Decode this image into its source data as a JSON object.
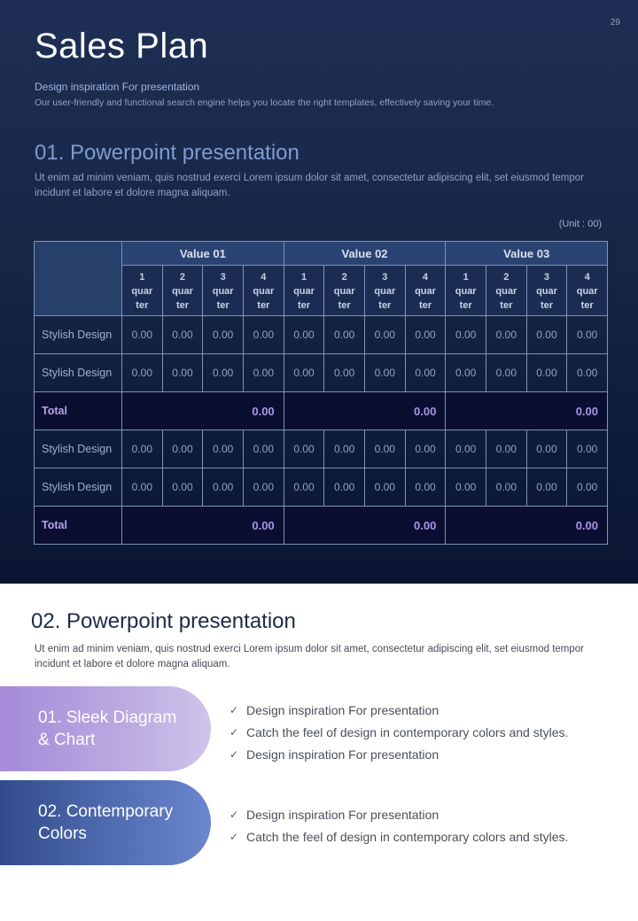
{
  "page_number": "29",
  "title": "Sales Plan",
  "subtitle": "Design inspiration For presentation",
  "subdescription": "Our user-friendly and functional search engine helps you locate the right templates, effectively saving your time.",
  "section1": {
    "title": "01. Powerpoint presentation",
    "description": "Ut enim ad minim veniam, quis nostrud exerci  Lorem ipsum dolor sit amet, consectetur  adipiscing elit, set eiusmod tempor incidunt et labore et dolore magna aliquam.",
    "unit": "(Unit : 00)"
  },
  "table": {
    "groups": [
      "Value 01",
      "Value 02",
      "Value 03"
    ],
    "quarters": [
      [
        "1",
        "quar",
        "ter"
      ],
      [
        "2",
        "quar",
        "ter"
      ],
      [
        "3",
        "quar",
        "ter"
      ],
      [
        "4",
        "quar",
        "ter"
      ]
    ],
    "rows": [
      {
        "label": "Stylish Design",
        "values": [
          "0.00",
          "0.00",
          "0.00",
          "0.00",
          "0.00",
          "0.00",
          "0.00",
          "0.00",
          "0.00",
          "0.00",
          "0.00",
          "0.00"
        ]
      },
      {
        "label": "Stylish Design",
        "values": [
          "0.00",
          "0.00",
          "0.00",
          "0.00",
          "0.00",
          "0.00",
          "0.00",
          "0.00",
          "0.00",
          "0.00",
          "0.00",
          "0.00"
        ]
      },
      {
        "label": "Total",
        "totals": [
          "0.00",
          "0.00",
          "0.00"
        ]
      },
      {
        "label": "Stylish Design",
        "values": [
          "0.00",
          "0.00",
          "0.00",
          "0.00",
          "0.00",
          "0.00",
          "0.00",
          "0.00",
          "0.00",
          "0.00",
          "0.00",
          "0.00"
        ]
      },
      {
        "label": "Stylish Design",
        "values": [
          "0.00",
          "0.00",
          "0.00",
          "0.00",
          "0.00",
          "0.00",
          "0.00",
          "0.00",
          "0.00",
          "0.00",
          "0.00",
          "0.00"
        ]
      },
      {
        "label": "Total",
        "totals": [
          "0.00",
          "0.00",
          "0.00"
        ]
      }
    ]
  },
  "section2": {
    "title": "02. Powerpoint presentation",
    "description": "Ut enim ad minim veniam, quis nostrud exerci  Lorem ipsum dolor sit amet, consectetur  adipiscing elit, set eiusmod tempor incidunt et labore et dolore magna aliquam.",
    "items": [
      {
        "pill": "01. Sleek Diagram & Chart",
        "checks": [
          "Design inspiration For presentation",
          "Catch the feel of design in contemporary colors and styles.",
          "Design inspiration For presentation"
        ]
      },
      {
        "pill": "02. Contemporary Colors",
        "checks": [
          "Design inspiration For presentation",
          "Catch the feel of design in contemporary colors and styles."
        ]
      }
    ]
  },
  "icons": {
    "check": "check-icon"
  },
  "colors": {
    "accent_purple": "#a58ad8",
    "accent_blue": "#324c8c",
    "dark_bg": "#162645"
  }
}
